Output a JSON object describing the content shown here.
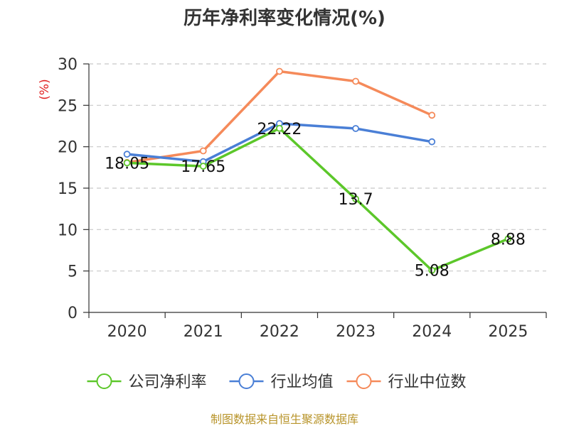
{
  "chart_data": {
    "type": "line",
    "title": "历年净利率变化情况(%)",
    "ylabel": "(%)",
    "xlabel": "",
    "categories": [
      "2020",
      "2021",
      "2022",
      "2023",
      "2024",
      "2025"
    ],
    "ylim": [
      0,
      30
    ],
    "yticks": [
      0,
      5,
      10,
      15,
      20,
      25,
      30
    ],
    "grid": true,
    "legend_position": "bottom",
    "series": [
      {
        "name": "公司净利率",
        "color": "#5cc72a",
        "values": [
          18.05,
          17.65,
          22.22,
          13.7,
          5.08,
          8.88
        ],
        "show_labels": true
      },
      {
        "name": "行业均值",
        "color": "#4a7fd6",
        "values": [
          19.1,
          18.2,
          22.8,
          22.2,
          20.6,
          null
        ],
        "show_labels": false
      },
      {
        "name": "行业中位数",
        "color": "#f58a5a",
        "values": [
          18.1,
          19.5,
          29.1,
          27.9,
          23.8,
          null
        ],
        "show_labels": false
      }
    ],
    "data_labels": [
      "18.05",
      "17.65",
      "22.22",
      "13.7",
      "5.08",
      "8.88"
    ]
  },
  "footer": {
    "source": "制图数据来自恒生聚源数据库"
  }
}
